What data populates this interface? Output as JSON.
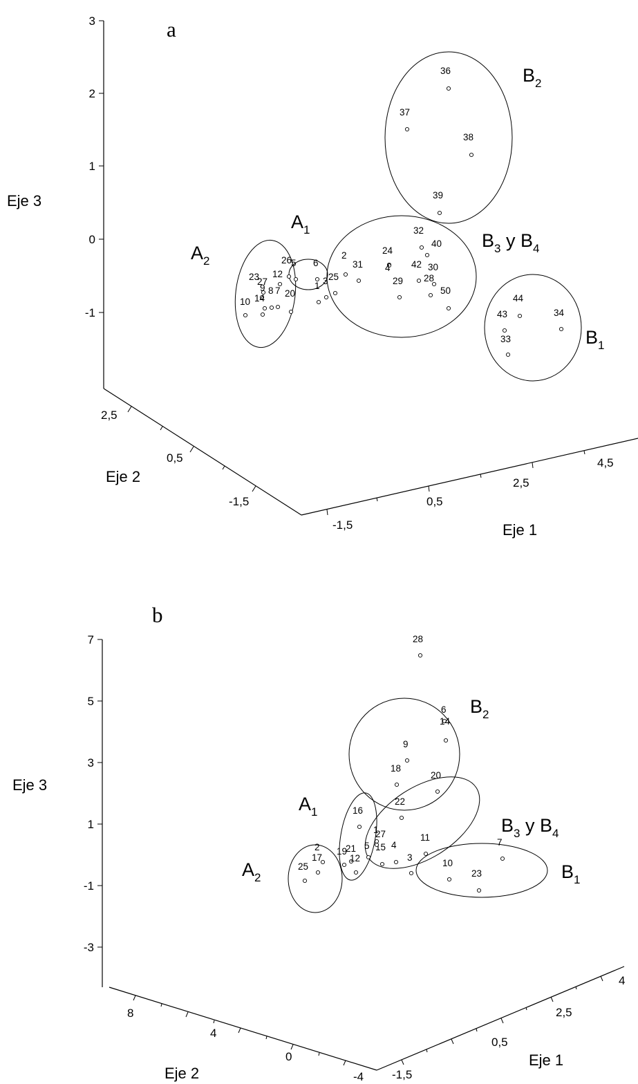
{
  "chart_data": [
    {
      "type": "scatter",
      "title": "a",
      "xlabel": "Eje 1",
      "ylabel": "Eje 2",
      "zlabel": "Eje 3",
      "axis1_ticks": [
        "-1,5",
        "0,5",
        "2,5",
        "4,5"
      ],
      "axis2_ticks": [
        "2,5",
        "0,5",
        "-1,5"
      ],
      "axis3_ticks": [
        "3",
        "2",
        "1",
        "0",
        "-1"
      ],
      "groups": [
        {
          "name": "A",
          "sub": "1"
        },
        {
          "name": "A",
          "sub": "2"
        },
        {
          "name": "B",
          "sub": "1"
        },
        {
          "name": "B",
          "sub": "2"
        },
        {
          "name": "B",
          "sub": "3",
          "suffix": " y B",
          "sub2": "4"
        }
      ],
      "points": [
        {
          "label": "36",
          "group": "B2"
        },
        {
          "label": "37",
          "group": "B2"
        },
        {
          "label": "38",
          "group": "B2"
        },
        {
          "label": "39",
          "group": "B2"
        },
        {
          "label": "32",
          "group": "B3 y B4"
        },
        {
          "label": "40",
          "group": "B3 y B4"
        },
        {
          "label": "24",
          "group": "B3 y B4"
        },
        {
          "label": "4",
          "group": "B3 y B4"
        },
        {
          "label": "42",
          "group": "B3 y B4"
        },
        {
          "label": "30",
          "group": "B3 y B4"
        },
        {
          "label": "28",
          "group": "B3 y B4"
        },
        {
          "label": "29",
          "group": "B3 y B4"
        },
        {
          "label": "50",
          "group": "B3 y B4"
        },
        {
          "label": "2",
          "group": "B3 y B4"
        },
        {
          "label": "31",
          "group": "B3 y B4"
        },
        {
          "label": "25",
          "group": "B3 y B4"
        },
        {
          "label": "6",
          "group": "A1"
        },
        {
          "label": "5",
          "group": "A1"
        },
        {
          "label": "1",
          "group": "A1"
        },
        {
          "label": "3",
          "group": "A1"
        },
        {
          "label": "26",
          "group": "A2"
        },
        {
          "label": "12",
          "group": "A2"
        },
        {
          "label": "23",
          "group": "A2"
        },
        {
          "label": "27",
          "group": "A2"
        },
        {
          "label": "9",
          "group": "A2"
        },
        {
          "label": "8",
          "group": "A2"
        },
        {
          "label": "7",
          "group": "A2"
        },
        {
          "label": "14",
          "group": "A2"
        },
        {
          "label": "10",
          "group": "A2"
        },
        {
          "label": "20",
          "group": "A2"
        },
        {
          "label": "44",
          "group": "B1"
        },
        {
          "label": "43",
          "group": "B1"
        },
        {
          "label": "33",
          "group": "B1"
        },
        {
          "label": "34",
          "group": "B1"
        }
      ]
    },
    {
      "type": "scatter",
      "title": "b",
      "xlabel": "Eje 1",
      "ylabel": "Eje 2",
      "zlabel": "Eje 3",
      "axis1_ticks": [
        "-1,5",
        "0,5",
        "2,5",
        "4"
      ],
      "axis2_ticks": [
        "8",
        "4",
        "0",
        "-4"
      ],
      "axis3_ticks": [
        "7",
        "5",
        "3",
        "1",
        "-1",
        "-3"
      ],
      "groups": [
        {
          "name": "A",
          "sub": "1"
        },
        {
          "name": "A",
          "sub": "2"
        },
        {
          "name": "B",
          "sub": "1"
        },
        {
          "name": "B",
          "sub": "2"
        },
        {
          "name": "B",
          "sub": "3",
          "suffix": " y B",
          "sub2": "4"
        }
      ],
      "points": [
        {
          "label": "28",
          "group": "B2"
        },
        {
          "label": "6",
          "group": "B2"
        },
        {
          "label": "14",
          "group": "B2"
        },
        {
          "label": "9",
          "group": "B2"
        },
        {
          "label": "18",
          "group": "B3 y B4"
        },
        {
          "label": "20",
          "group": "B3 y B4"
        },
        {
          "label": "22",
          "group": "B3 y B4"
        },
        {
          "label": "11",
          "group": "B3 y B4"
        },
        {
          "label": "4",
          "group": "B3 y B4"
        },
        {
          "label": "15",
          "group": "B3 y B4"
        },
        {
          "label": "16",
          "group": "A1"
        },
        {
          "label": "1",
          "group": "A1"
        },
        {
          "label": "27",
          "group": "A1"
        },
        {
          "label": "5",
          "group": "A1"
        },
        {
          "label": "21",
          "group": "A1"
        },
        {
          "label": "19",
          "group": "A1"
        },
        {
          "label": "12",
          "group": "A1"
        },
        {
          "label": "2",
          "group": "A2"
        },
        {
          "label": "17",
          "group": "A2"
        },
        {
          "label": "25",
          "group": "A2"
        },
        {
          "label": "3",
          "group": "none"
        },
        {
          "label": "10",
          "group": "B1"
        },
        {
          "label": "7",
          "group": "B1"
        },
        {
          "label": "23",
          "group": "B1"
        }
      ]
    }
  ]
}
